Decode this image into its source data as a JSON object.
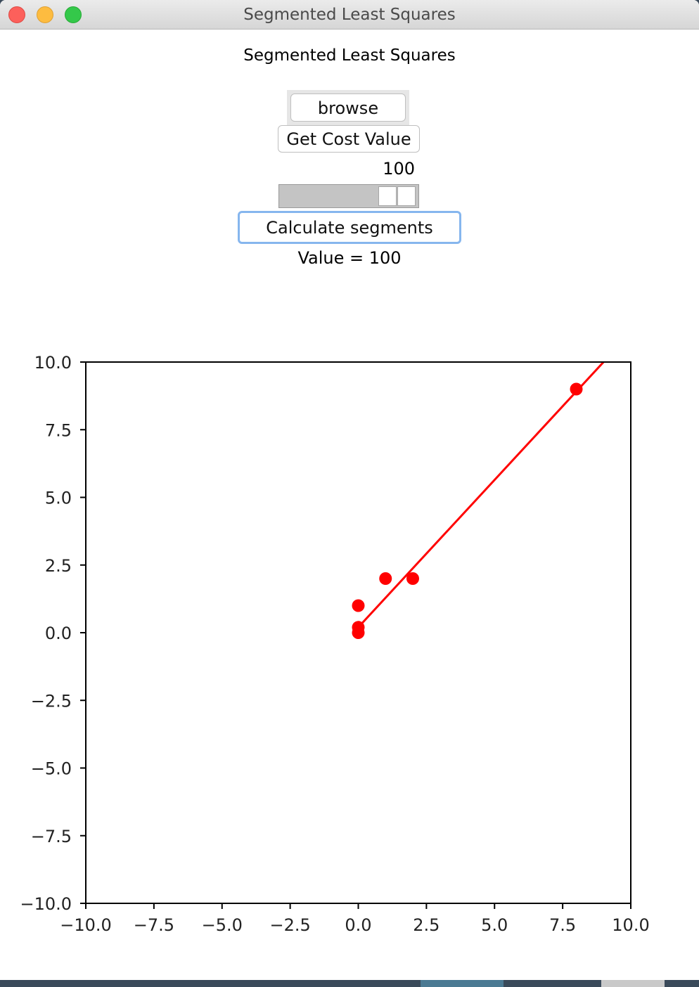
{
  "window": {
    "title": "Segmented Least Squares"
  },
  "app": {
    "heading": "Segmented Least Squares",
    "browse_label": "browse",
    "cost_label": "Get Cost Value",
    "slider_value": "100",
    "calculate_label": "Calculate segments",
    "value_text": "Value = 100"
  },
  "chart_data": {
    "type": "scatter",
    "xlim": [
      -10.0,
      10.0
    ],
    "ylim": [
      -10.0,
      10.0
    ],
    "x_ticks": [
      "−10.0",
      "−7.5",
      "−5.0",
      "−2.5",
      "0.0",
      "2.5",
      "5.0",
      "7.5",
      "10.0"
    ],
    "y_ticks": [
      "10.0",
      "7.5",
      "5.0",
      "2.5",
      "0.0",
      "−2.5",
      "−5.0",
      "−7.5",
      "−10.0"
    ],
    "x_tick_values": [
      -10,
      -7.5,
      -5,
      -2.5,
      0,
      2.5,
      5,
      7.5,
      10
    ],
    "y_tick_values": [
      10,
      7.5,
      5,
      2.5,
      0,
      -2.5,
      -5,
      -7.5,
      -10
    ],
    "grid": false,
    "points": [
      {
        "x": 0,
        "y": 0
      },
      {
        "x": 0,
        "y": 0.2
      },
      {
        "x": 0,
        "y": 1
      },
      {
        "x": 1,
        "y": 2
      },
      {
        "x": 2,
        "y": 2
      },
      {
        "x": 8,
        "y": 9
      }
    ],
    "fit_line": {
      "x1": 0,
      "y1": 0.2,
      "x2": 9,
      "y2": 10
    },
    "color": "#ff0000"
  }
}
